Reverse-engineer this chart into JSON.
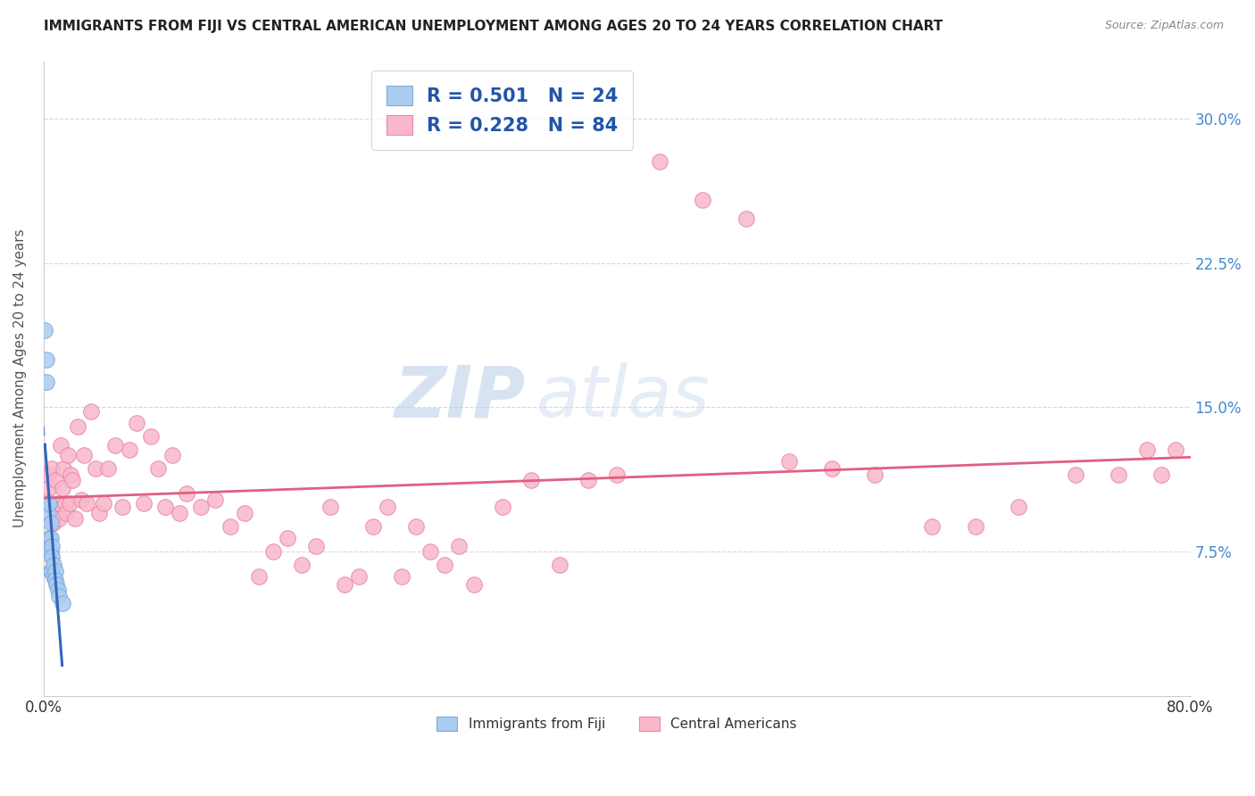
{
  "title": "IMMIGRANTS FROM FIJI VS CENTRAL AMERICAN UNEMPLOYMENT AMONG AGES 20 TO 24 YEARS CORRELATION CHART",
  "source": "Source: ZipAtlas.com",
  "ylabel": "Unemployment Among Ages 20 to 24 years",
  "xmin": 0.0,
  "xmax": 0.8,
  "ymin": 0.0,
  "ymax": 0.33,
  "xticks": [
    0.0,
    0.1,
    0.2,
    0.3,
    0.4,
    0.5,
    0.6,
    0.7,
    0.8
  ],
  "xticklabels": [
    "0.0%",
    "",
    "",
    "",
    "",
    "",
    "",
    "",
    "80.0%"
  ],
  "yticks": [
    0.0,
    0.075,
    0.15,
    0.225,
    0.3
  ],
  "yticklabels": [
    "",
    "7.5%",
    "15.0%",
    "22.5%",
    "30.0%"
  ],
  "grid_color": "#d8d8d8",
  "background_color": "#ffffff",
  "fiji_color": "#aaccf0",
  "fiji_edge_color": "#80aada",
  "central_color": "#f8b8ca",
  "central_edge_color": "#e888a8",
  "fiji_R": 0.501,
  "fiji_N": 24,
  "central_R": 0.228,
  "central_N": 84,
  "fiji_line_color": "#3366bb",
  "central_line_color": "#e06080",
  "watermark_zip": "ZIP",
  "watermark_atlas": "atlas",
  "fiji_scatter_x": [
    0.001,
    0.002,
    0.002,
    0.003,
    0.003,
    0.003,
    0.004,
    0.004,
    0.004,
    0.005,
    0.005,
    0.005,
    0.005,
    0.006,
    0.006,
    0.006,
    0.007,
    0.007,
    0.008,
    0.008,
    0.009,
    0.01,
    0.011,
    0.013
  ],
  "fiji_scatter_y": [
    0.19,
    0.175,
    0.163,
    0.1,
    0.095,
    0.078,
    0.1,
    0.082,
    0.075,
    0.09,
    0.082,
    0.075,
    0.065,
    0.078,
    0.072,
    0.065,
    0.068,
    0.062,
    0.065,
    0.06,
    0.058,
    0.055,
    0.052,
    0.048
  ],
  "central_scatter_x": [
    0.003,
    0.004,
    0.005,
    0.006,
    0.007,
    0.008,
    0.009,
    0.01,
    0.011,
    0.012,
    0.013,
    0.014,
    0.015,
    0.016,
    0.017,
    0.018,
    0.019,
    0.02,
    0.022,
    0.024,
    0.026,
    0.028,
    0.03,
    0.033,
    0.036,
    0.039,
    0.042,
    0.045,
    0.05,
    0.055,
    0.06,
    0.065,
    0.07,
    0.075,
    0.08,
    0.085,
    0.09,
    0.095,
    0.1,
    0.11,
    0.12,
    0.13,
    0.14,
    0.15,
    0.16,
    0.17,
    0.18,
    0.19,
    0.2,
    0.21,
    0.22,
    0.23,
    0.24,
    0.25,
    0.26,
    0.27,
    0.28,
    0.29,
    0.3,
    0.32,
    0.34,
    0.36,
    0.38,
    0.4,
    0.43,
    0.46,
    0.49,
    0.52,
    0.55,
    0.58,
    0.62,
    0.65,
    0.68,
    0.72,
    0.75,
    0.77,
    0.78,
    0.79
  ],
  "central_scatter_y": [
    0.115,
    0.108,
    0.098,
    0.118,
    0.09,
    0.112,
    0.095,
    0.1,
    0.092,
    0.13,
    0.108,
    0.118,
    0.1,
    0.095,
    0.125,
    0.1,
    0.115,
    0.112,
    0.092,
    0.14,
    0.102,
    0.125,
    0.1,
    0.148,
    0.118,
    0.095,
    0.1,
    0.118,
    0.13,
    0.098,
    0.128,
    0.142,
    0.1,
    0.135,
    0.118,
    0.098,
    0.125,
    0.095,
    0.105,
    0.098,
    0.102,
    0.088,
    0.095,
    0.062,
    0.075,
    0.082,
    0.068,
    0.078,
    0.098,
    0.058,
    0.062,
    0.088,
    0.098,
    0.062,
    0.088,
    0.075,
    0.068,
    0.078,
    0.058,
    0.098,
    0.112,
    0.068,
    0.112,
    0.115,
    0.278,
    0.258,
    0.248,
    0.122,
    0.118,
    0.115,
    0.088,
    0.088,
    0.098,
    0.115,
    0.115,
    0.128,
    0.115,
    0.128
  ]
}
